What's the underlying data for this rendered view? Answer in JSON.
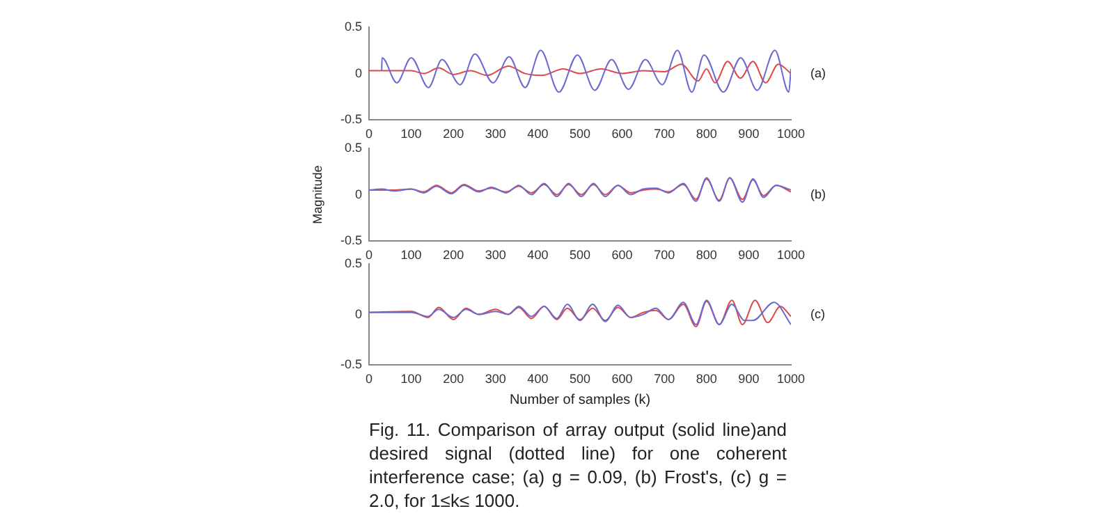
{
  "chart_data": [
    {
      "type": "line",
      "xlim": [
        0,
        1000
      ],
      "xticks": [
        0,
        100,
        200,
        300,
        400,
        500,
        600,
        700,
        800,
        900,
        1000
      ],
      "ylim": [
        -0.5,
        0.5
      ],
      "yticks": [
        -0.5,
        0,
        0.5
      ],
      "annotations": [
        "(a)"
      ],
      "series": [
        {
          "color": "#6a6ad0",
          "x": [
            30,
            31,
            66,
            100,
            141,
            173,
            216,
            251,
            294,
            332,
            370,
            407,
            450,
            494,
            535,
            575,
            615,
            655,
            695,
            731,
            765,
            794,
            840,
            881,
            920,
            962,
            995,
            1000
          ],
          "values": [
            0.03,
            0.17,
            -0.1,
            0.17,
            -0.15,
            0.15,
            -0.12,
            0.21,
            -0.1,
            0.18,
            -0.15,
            0.25,
            -0.2,
            0.2,
            -0.18,
            0.15,
            -0.17,
            0.15,
            -0.12,
            0.25,
            -0.2,
            0.2,
            -0.2,
            0.17,
            -0.18,
            0.25,
            -0.2,
            0.05
          ]
        },
        {
          "color": "#e04848",
          "x": [
            0,
            100,
            130,
            165,
            200,
            240,
            280,
            330,
            370,
            410,
            460,
            500,
            550,
            600,
            650,
            700,
            740,
            780,
            800,
            820,
            850,
            880,
            910,
            940,
            970,
            1000
          ],
          "values": [
            0.03,
            0.03,
            0,
            0.06,
            -0.01,
            0.03,
            -0.02,
            0.08,
            0,
            -0.02,
            0.05,
            0,
            0.05,
            0,
            0.03,
            0.02,
            0.1,
            -0.08,
            0.05,
            -0.1,
            0.13,
            -0.05,
            0.13,
            -0.1,
            0.1,
            0
          ]
        }
      ]
    },
    {
      "type": "line",
      "ylabel": "Magnitude",
      "xlim": [
        0,
        1000
      ],
      "xticks": [
        0,
        100,
        200,
        300,
        400,
        500,
        600,
        700,
        800,
        900,
        1000
      ],
      "ylim": [
        -0.5,
        0.5
      ],
      "yticks": [
        -0.5,
        0,
        0.5
      ],
      "annotations": [
        "(b)"
      ],
      "series": [
        {
          "color": "#6a6ad0",
          "x": [
            0,
            30,
            60,
            100,
            130,
            160,
            195,
            225,
            260,
            290,
            325,
            355,
            385,
            415,
            445,
            473,
            503,
            532,
            560,
            590,
            620,
            650,
            680,
            710,
            745,
            775,
            800,
            830,
            855,
            885,
            910,
            935,
            965,
            1000
          ],
          "values": [
            0.05,
            0.06,
            0.04,
            0.06,
            0.02,
            0.09,
            0.01,
            0.1,
            0.03,
            0.08,
            0.02,
            0.1,
            0,
            0.12,
            -0.02,
            0.12,
            -0.02,
            0.12,
            -0.02,
            0.1,
            0,
            0.06,
            0.07,
            0.02,
            0.12,
            -0.07,
            0.18,
            -0.07,
            0.18,
            -0.08,
            0.17,
            -0.03,
            0.1,
            0.05
          ]
        },
        {
          "color": "#e04848",
          "x": [
            0,
            30,
            60,
            100,
            130,
            160,
            195,
            225,
            260,
            290,
            325,
            355,
            385,
            415,
            445,
            473,
            503,
            532,
            560,
            590,
            620,
            650,
            680,
            710,
            745,
            775,
            800,
            830,
            855,
            885,
            910,
            935,
            965,
            1000
          ],
          "values": [
            0.05,
            0.05,
            0.05,
            0.06,
            0.03,
            0.1,
            0.02,
            0.11,
            0.04,
            0.07,
            0.03,
            0.09,
            0.02,
            0.11,
            0,
            0.11,
            0,
            0.11,
            0,
            0.1,
            0.02,
            0.05,
            0.06,
            0.03,
            0.11,
            -0.05,
            0.17,
            -0.06,
            0.18,
            -0.05,
            0.16,
            -0.01,
            0.1,
            0.03
          ]
        }
      ]
    },
    {
      "type": "line",
      "xlabel": "Number of samples (k)",
      "xlim": [
        0,
        1000
      ],
      "xticks": [
        0,
        100,
        200,
        300,
        400,
        500,
        600,
        700,
        800,
        900,
        1000
      ],
      "ylim": [
        -0.5,
        0.5
      ],
      "yticks": [
        -0.5,
        0,
        0.5
      ],
      "annotations": [
        "(c)",
        "Fig. 11. Comparison of array output (solid line)and desired signal (dotted line) for one coherent interference case; (a) g = 0.09, (b) Frost's, (c) g = 2.0, for 1≤k≤ 1000."
      ],
      "series": [
        {
          "color": "#6a6ad0",
          "x": [
            0,
            100,
            140,
            165,
            200,
            230,
            260,
            300,
            330,
            355,
            385,
            415,
            445,
            470,
            500,
            530,
            560,
            590,
            620,
            650,
            680,
            710,
            745,
            775,
            800,
            830,
            860,
            890,
            910,
            960,
            1000
          ],
          "values": [
            0.02,
            0.02,
            -0.02,
            0.05,
            -0.03,
            0.05,
            0,
            0.03,
            0,
            0.08,
            -0.02,
            0.08,
            -0.04,
            0.1,
            -0.06,
            0.1,
            -0.07,
            0.09,
            -0.03,
            0,
            0.06,
            -0.05,
            0.12,
            -0.1,
            0.14,
            -0.1,
            0.1,
            -0.06,
            -0.06,
            0.12,
            -0.1
          ]
        },
        {
          "color": "#e04848",
          "x": [
            0,
            100,
            140,
            165,
            200,
            230,
            260,
            300,
            330,
            355,
            385,
            415,
            445,
            470,
            500,
            530,
            560,
            590,
            620,
            650,
            680,
            710,
            745,
            775,
            800,
            830,
            860,
            885,
            915,
            945,
            975,
            1000
          ],
          "values": [
            0.02,
            0.03,
            -0.03,
            0.07,
            -0.05,
            0.06,
            0,
            0.05,
            0,
            0.07,
            -0.04,
            0.08,
            -0.05,
            0.06,
            -0.05,
            0.06,
            -0.06,
            0.07,
            -0.03,
            0.02,
            0.04,
            -0.05,
            0.1,
            -0.12,
            0.13,
            -0.1,
            0.14,
            -0.1,
            0.14,
            -0.08,
            0.08,
            -0.02
          ]
        }
      ]
    }
  ]
}
